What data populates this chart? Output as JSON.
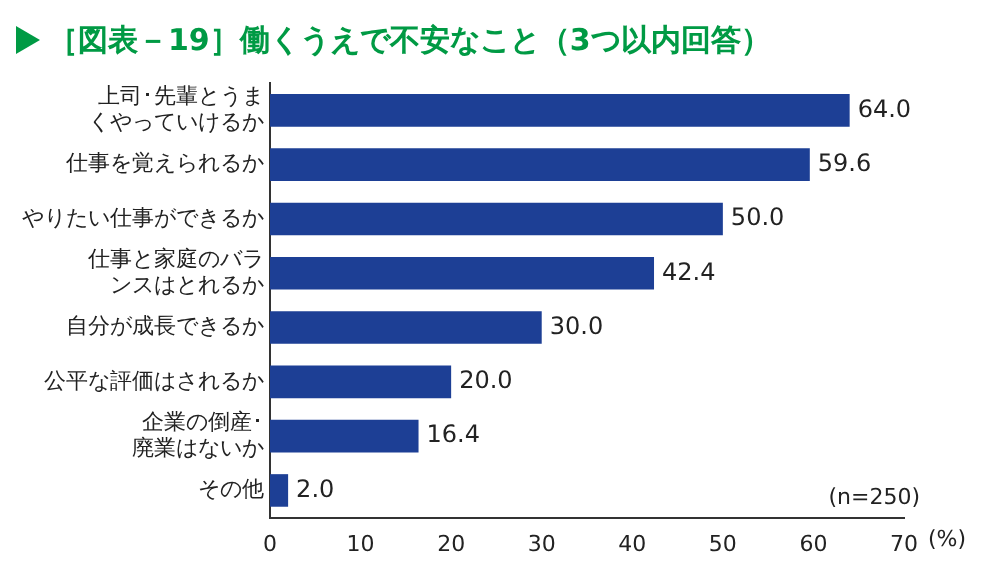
{
  "chart_data": {
    "type": "bar",
    "orientation": "horizontal",
    "title": "［図表－19］働くうえで不安なこと（3つ以内回答）",
    "categories": [
      "上司･先輩とうまくやっていけるか",
      "仕事を覚えられるか",
      "やりたい仕事ができるか",
      "仕事と家庭のバランスはとれるか",
      "自分が成長できるか",
      "公平な評価はされるか",
      "企業の倒産･廃業はないか",
      "その他"
    ],
    "values": [
      64.0,
      59.6,
      50.0,
      42.4,
      30.0,
      20.0,
      16.4,
      2.0
    ],
    "value_labels": [
      "64.0",
      "59.6",
      "50.0",
      "42.4",
      "30.0",
      "20.0",
      "16.4",
      "2.0"
    ],
    "color": "#1d3f95",
    "xlim": [
      0,
      70
    ],
    "xticks": [
      0,
      10,
      20,
      30,
      40,
      50,
      60,
      70
    ],
    "xlabel": "(%)",
    "annotations": [
      "(n=250)"
    ],
    "grid": false,
    "legend": false
  }
}
